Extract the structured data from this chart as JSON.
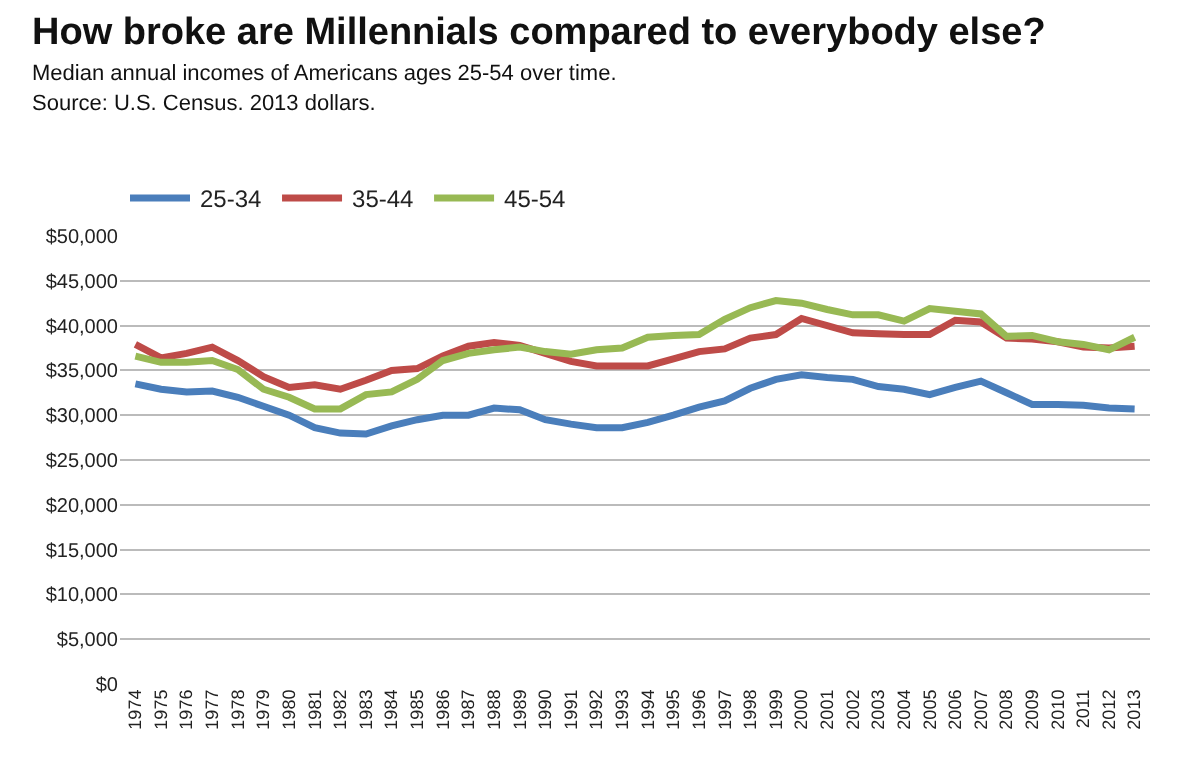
{
  "chart_data": {
    "type": "line",
    "title": "How broke are Millennials compared to everybody else?",
    "subtitle": "Median annual incomes of Americans ages 25-54 over time.",
    "annotations": [
      "Source: U.S. Census. 2013 dollars."
    ],
    "categories": [
      "1974",
      "1975",
      "1976",
      "1977",
      "1978",
      "1979",
      "1980",
      "1981",
      "1982",
      "1983",
      "1984",
      "1985",
      "1986",
      "1987",
      "1988",
      "1989",
      "1990",
      "1991",
      "1992",
      "1993",
      "1994",
      "1995",
      "1996",
      "1997",
      "1998",
      "1999",
      "2000",
      "2001",
      "2002",
      "2003",
      "2004",
      "2005",
      "2006",
      "2007",
      "2008",
      "2009",
      "2010",
      "2011",
      "2012",
      "2013"
    ],
    "series": [
      {
        "name": "25-34",
        "color": "#4a7ebb",
        "values": [
          33500,
          32900,
          32600,
          32700,
          32000,
          31000,
          30000,
          28600,
          28000,
          27900,
          28800,
          29500,
          30000,
          30000,
          30800,
          30600,
          29500,
          29000,
          28600,
          28600,
          29200,
          30000,
          30900,
          31600,
          33000,
          34000,
          34500,
          34200,
          34000,
          33200,
          32900,
          32300,
          33100,
          33800,
          32500,
          31200,
          31200,
          31100,
          30800,
          30700
        ]
      },
      {
        "name": "35-44",
        "color": "#be4b48",
        "values": [
          37900,
          36400,
          36900,
          37600,
          36100,
          34300,
          33100,
          33400,
          32900,
          33900,
          35000,
          35200,
          36600,
          37700,
          38100,
          37800,
          36900,
          36000,
          35500,
          35500,
          35500,
          36300,
          37100,
          37400,
          38600,
          39000,
          40800,
          40000,
          39200,
          39100,
          39000,
          39000,
          40600,
          40400,
          38600,
          38500,
          38200,
          37600,
          37500,
          37700
        ]
      },
      {
        "name": "45-54",
        "color": "#98b954",
        "values": [
          36600,
          35900,
          35900,
          36100,
          35100,
          32900,
          32000,
          30700,
          30700,
          32300,
          32600,
          34000,
          36100,
          36900,
          37300,
          37600,
          37100,
          36800,
          37300,
          37500,
          38700,
          38900,
          39000,
          40700,
          42000,
          42800,
          42500,
          41800,
          41200,
          41200,
          40500,
          41900,
          41600,
          41300,
          38800,
          38900,
          38200,
          37900,
          37300,
          38700
        ]
      }
    ],
    "ylim": [
      0,
      50000
    ],
    "yticks": [
      {
        "value": 0,
        "label": "$0"
      },
      {
        "value": 5000,
        "label": "$5,000"
      },
      {
        "value": 10000,
        "label": "$10,000"
      },
      {
        "value": 15000,
        "label": "$15,000"
      },
      {
        "value": 20000,
        "label": "$20,000"
      },
      {
        "value": 25000,
        "label": "$25,000"
      },
      {
        "value": 30000,
        "label": "$30,000"
      },
      {
        "value": 35000,
        "label": "$35,000"
      },
      {
        "value": 40000,
        "label": "$40,000"
      },
      {
        "value": 45000,
        "label": "$45,000"
      },
      {
        "value": 50000,
        "label": "$50,000"
      }
    ],
    "grid": "y",
    "legend": "top left",
    "marker": "none",
    "line_style": "solid"
  }
}
